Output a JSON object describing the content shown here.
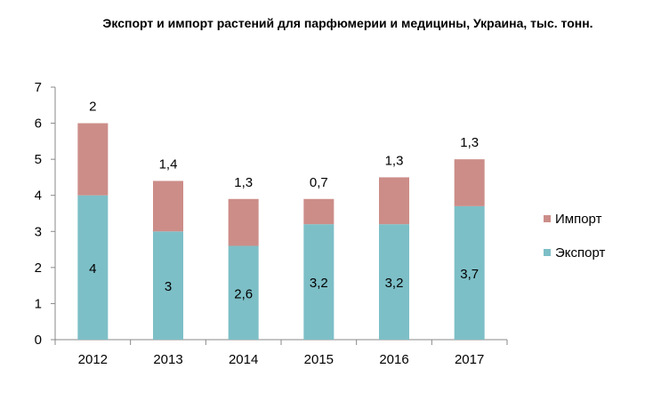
{
  "chart_data": {
    "type": "bar",
    "stacked": true,
    "title": "Экспорт и импорт растений для парфюмерии и медицины, Украина, тыс. тонн.",
    "categories": [
      "2012",
      "2013",
      "2014",
      "2015",
      "2016",
      "2017"
    ],
    "series": [
      {
        "name": "Экспорт",
        "values": [
          4,
          3,
          2.6,
          3.2,
          3.2,
          3.7
        ],
        "labels": [
          "4",
          "3",
          "2,6",
          "3,2",
          "3,2",
          "3,7"
        ],
        "color": "#7dbfc7"
      },
      {
        "name": "Импорт",
        "values": [
          2,
          1.4,
          1.3,
          0.7,
          1.3,
          1.3
        ],
        "labels": [
          "2",
          "1,4",
          "1,3",
          "0,7",
          "1,3",
          "1,3"
        ],
        "color": "#cc8d88"
      }
    ],
    "ylim": [
      0,
      7
    ],
    "yticks": [
      "0",
      "1",
      "2",
      "3",
      "4",
      "5",
      "6",
      "7"
    ],
    "grid": false,
    "legend": "right"
  }
}
